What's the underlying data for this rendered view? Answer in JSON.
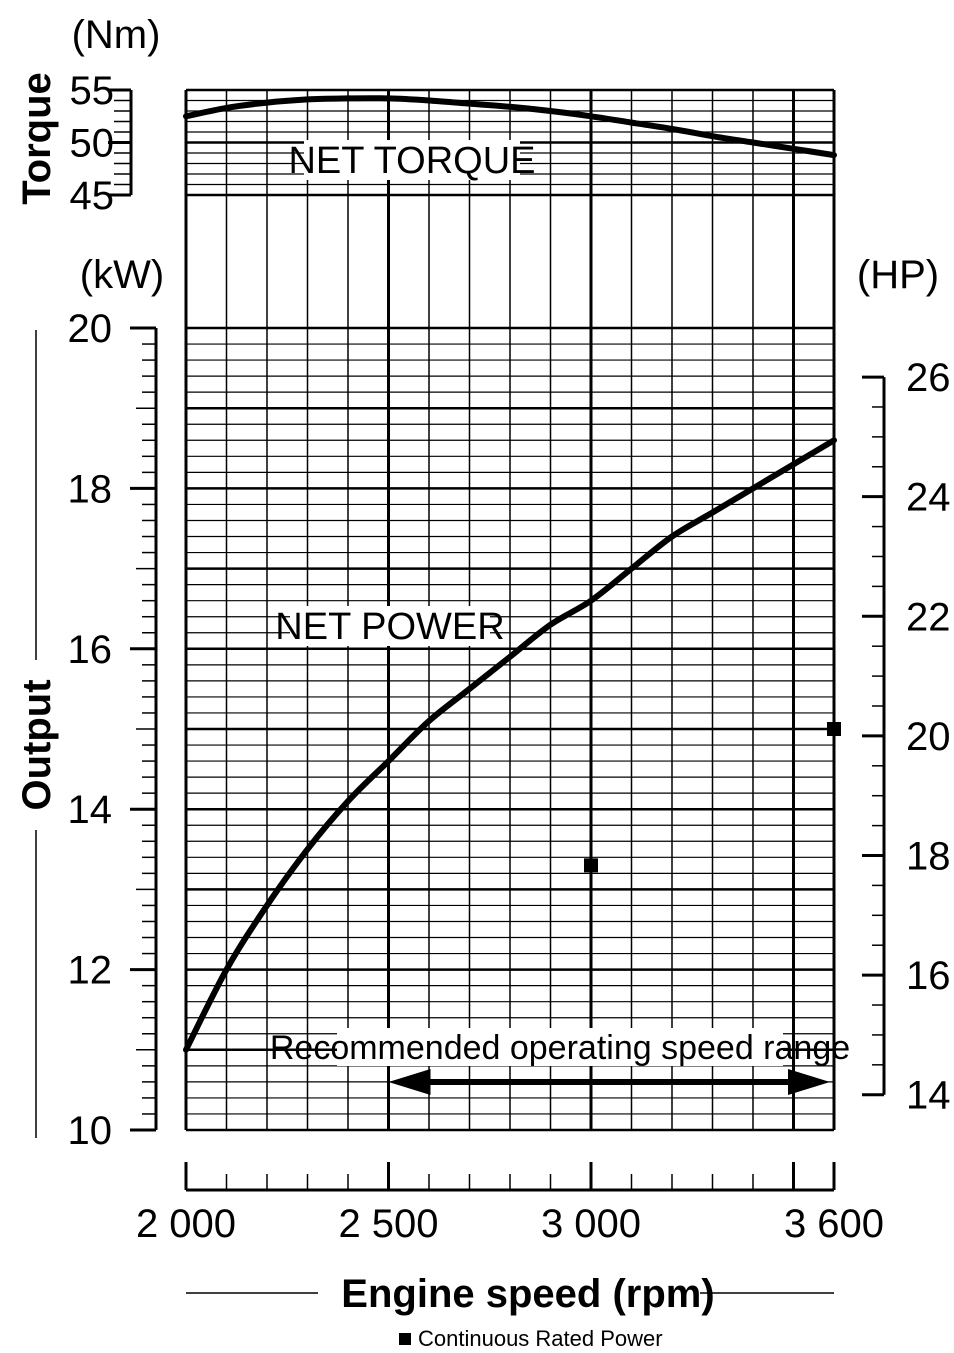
{
  "chart_data": [
    {
      "type": "line",
      "title": "",
      "xlabel": "Engine speed (rpm)",
      "ylabel": "Torque",
      "y_unit": "(Nm)",
      "xlim": [
        2000,
        3600
      ],
      "ylim": [
        45,
        55
      ],
      "y_ticks": [
        "55",
        "50",
        "45"
      ],
      "grid": true,
      "series": [
        {
          "name": "NET TORQUE",
          "x": [
            2000,
            2100,
            2200,
            2300,
            2400,
            2500,
            2600,
            2700,
            2800,
            2900,
            3000,
            3100,
            3200,
            3300,
            3400,
            3500,
            3600
          ],
          "y": [
            52.5,
            53.3,
            53.8,
            54.1,
            54.2,
            54.2,
            54.0,
            53.7,
            53.4,
            53.0,
            52.5,
            51.9,
            51.3,
            50.6,
            50.0,
            49.4,
            48.8
          ]
        }
      ]
    },
    {
      "type": "line",
      "title": "",
      "xlabel": "Engine speed (rpm)",
      "ylabel": "Output",
      "y_unit": "(kW)",
      "y2_unit": "(HP)",
      "xlim": [
        2000,
        3600
      ],
      "ylim": [
        10,
        20
      ],
      "y2lim": [
        14,
        26
      ],
      "x_ticks": [
        "2 000",
        "2 500",
        "3 000",
        "3 600"
      ],
      "y_ticks": [
        "20",
        "18",
        "16",
        "14",
        "12",
        "10"
      ],
      "y2_ticks": [
        "26",
        "24",
        "22",
        "20",
        "18",
        "16",
        "14"
      ],
      "grid": true,
      "series": [
        {
          "name": "NET POWER",
          "x": [
            2000,
            2100,
            2200,
            2300,
            2400,
            2500,
            2600,
            2700,
            2800,
            2900,
            3000,
            3100,
            3200,
            3300,
            3400,
            3500,
            3600
          ],
          "y": [
            11.0,
            12.0,
            12.8,
            13.5,
            14.1,
            14.6,
            15.1,
            15.5,
            15.9,
            16.3,
            16.6,
            17.0,
            17.4,
            17.7,
            18.0,
            18.3,
            18.6
          ]
        }
      ],
      "markers": {
        "name": "Continuous Rated Power",
        "points": [
          {
            "x": 3000,
            "y": 13.3
          },
          {
            "x": 3600,
            "y": 15.0
          }
        ]
      },
      "annotation": {
        "text": "Recommended operating speed range",
        "x_from": 2500,
        "x_to": 3600
      }
    }
  ]
}
